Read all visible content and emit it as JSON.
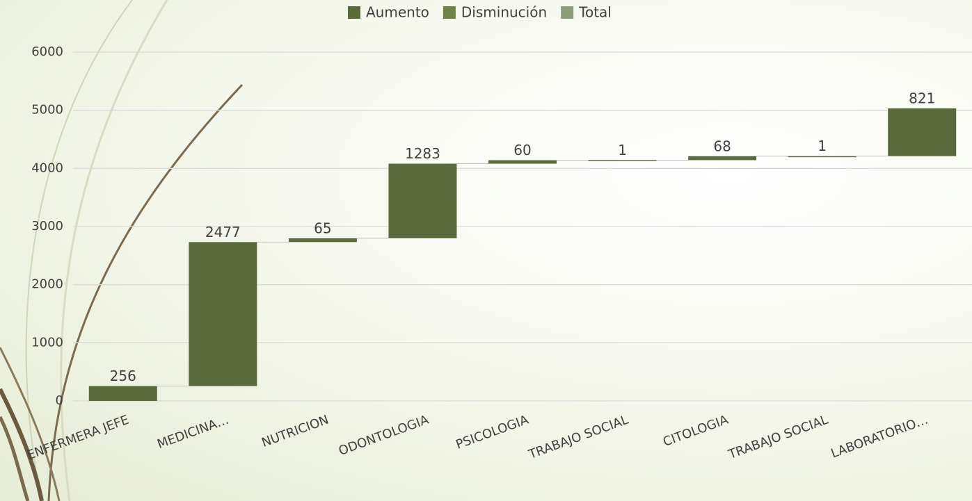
{
  "chart_data": {
    "type": "waterfall",
    "categories": [
      "ENFERMERA JEFE",
      "MEDICINA…",
      "NUTRICION",
      "ODONTOLOGIA",
      "PSICOLOGIA",
      "TRABAJO SOCIAL",
      "CITOLOGIA",
      "TRABAJO SOCIAL",
      "LABORATORIO…"
    ],
    "series": [
      {
        "name": "Aumento",
        "color": "#5a6a3c",
        "values": [
          256,
          2477,
          65,
          1283,
          60,
          1,
          68,
          1,
          821
        ]
      },
      {
        "name": "Disminución",
        "color": "#6e8248",
        "values": [
          null,
          null,
          null,
          null,
          null,
          null,
          null,
          null,
          null
        ]
      },
      {
        "name": "Total",
        "color": "#8d9c7b",
        "values": [
          null,
          null,
          null,
          null,
          null,
          null,
          null,
          null,
          null
        ]
      }
    ],
    "ylim": [
      0,
      6000
    ],
    "yticks": [
      0,
      1000,
      2000,
      3000,
      4000,
      5000,
      6000
    ],
    "grid": true
  }
}
